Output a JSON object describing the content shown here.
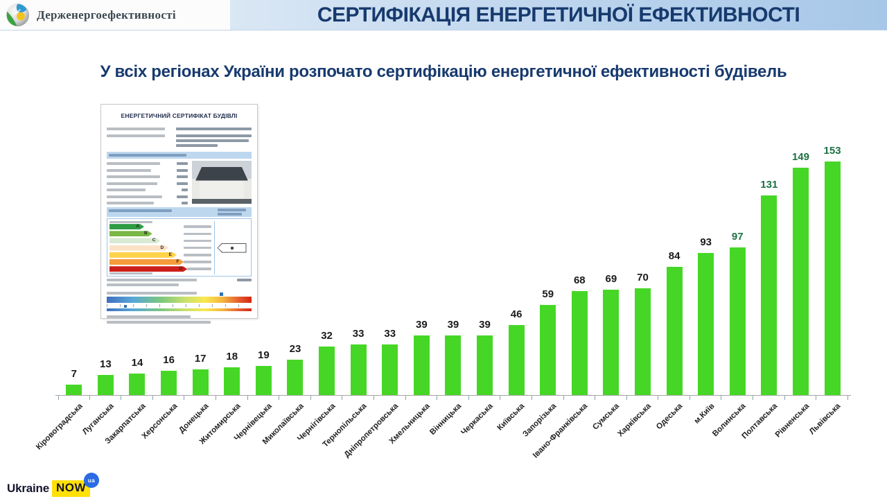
{
  "header": {
    "logo_text": "Держенергоефективності",
    "title": "СЕРТИФІКАЦІЯ ЕНЕРГЕТИЧНОЇ ЕФЕКТИВНОСТІ"
  },
  "subtitle": "У всіх регіонах України розпочато сертифікацію енергетичної ефективності будівель",
  "certificate": {
    "title": "ЕНЕРГЕТИЧНИЙ СЕРТИФІКАТ БУДІВЛІ",
    "rating": [
      {
        "letter": "A",
        "color": "#2e9c44"
      },
      {
        "letter": "B",
        "color": "#79b843"
      },
      {
        "letter": "C",
        "color": "#d9ead3"
      },
      {
        "letter": "D",
        "color": "#fbe2c5"
      },
      {
        "letter": "E",
        "color": "#ffd24a"
      },
      {
        "letter": "F",
        "color": "#f59c3c"
      },
      {
        "letter": "G",
        "color": "#cc1f1a"
      }
    ]
  },
  "footer": {
    "brand": {
      "word1": "Ukraine",
      "word2": "NOW",
      "badge": "ua"
    }
  },
  "chart_data": {
    "type": "bar",
    "title": "",
    "xlabel": "",
    "ylabel": "",
    "ylim": [
      0,
      160
    ],
    "grid": false,
    "legend": false,
    "bar_color": "#46d726",
    "value_label_color": "#1a1a1a",
    "value_label_highlight_color": "#1e7145",
    "categories": [
      "Кіровоградська",
      "Луганська",
      "Закарпатська",
      "Херсонська",
      "Донецька",
      "Житомирська",
      "Чернівецька",
      "Миколаївська",
      "Чернігівська",
      "Тернопільська",
      "Дніпропетровська",
      "Хмельницька",
      "Вінницька",
      "Черкаська",
      "Київська",
      "Запорізька",
      "Івано-Франківська",
      "Сумська",
      "Харківська",
      "Одеська",
      "м.Київ",
      "Волинська",
      "Полтавська",
      "Рівненська",
      "Львівська"
    ],
    "values": [
      7,
      13,
      14,
      16,
      17,
      18,
      19,
      23,
      32,
      33,
      33,
      39,
      39,
      39,
      46,
      59,
      68,
      69,
      70,
      84,
      93,
      97,
      131,
      149,
      153
    ],
    "highlighted_categories": [
      "Волинська",
      "Полтавська",
      "Рівненська",
      "Львівська"
    ]
  }
}
